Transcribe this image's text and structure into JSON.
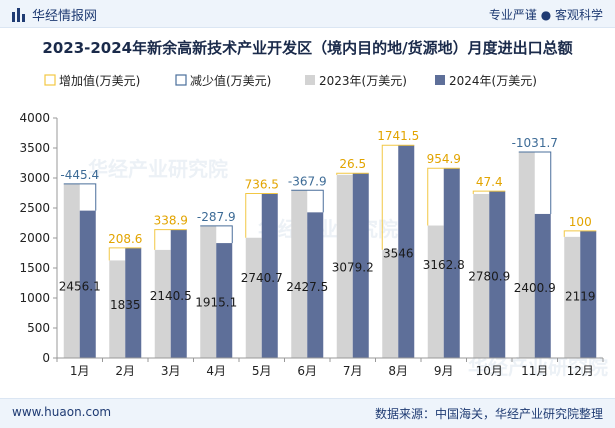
{
  "header": {
    "brand": "华经情报网",
    "tagline": "专业严谨 ● 客观科学"
  },
  "footer": {
    "website": "www.huaon.com",
    "source": "数据来源：中国海关，华经产业研究院整理"
  },
  "watermark": "华经产业研究院",
  "colors": {
    "bar2023": "#d3d3d3",
    "bar2024": "#5e6f99",
    "increase": "#f2c744",
    "decrease": "#4a6f9b",
    "increaseLabel": "#e2a400",
    "decreaseLabel": "#3d6b96"
  },
  "chart_data": {
    "type": "bar",
    "title": "2023-2024年新余高新技术产业开发区（境内目的地/货源地）月度进出口总额",
    "legend": [
      "增加值(万美元)",
      "减少值(万美元)",
      "2023年(万美元)",
      "2024年(万美元)"
    ],
    "legend_position": "top-left",
    "categories": [
      "1月",
      "2月",
      "3月",
      "4月",
      "5月",
      "6月",
      "7月",
      "8月",
      "9月",
      "10月",
      "11月",
      "12月"
    ],
    "series": [
      {
        "name": "2023年(万美元)",
        "values": [
          2901.5,
          1626.4,
          1801.6,
          2203.0,
          2004.2,
          2795.4,
          3052.7,
          1804.5,
          2207.9,
          2733.5,
          3432.6,
          2019
        ]
      },
      {
        "name": "2024年(万美元)",
        "values": [
          2456.1,
          1835,
          2140.5,
          1915.1,
          2740.7,
          2427.5,
          3079.2,
          3546,
          3162.8,
          2780.9,
          2400.9,
          2119
        ]
      }
    ],
    "change_labels": [
      "-445.4",
      "208.6",
      "338.9",
      "-287.9",
      "736.5",
      "-367.9",
      "26.5",
      "1741.5",
      "954.9",
      "47.4",
      "-1031.7",
      "100"
    ],
    "value_labels": [
      "2456.1",
      "1835",
      "2140.5",
      "1915.1",
      "2740.7",
      "2427.5",
      "3079.2",
      "3546",
      "3162.8",
      "2780.9",
      "2400.9",
      "2119"
    ],
    "y_ticks": [
      "0",
      "500",
      "1000",
      "1500",
      "2000",
      "2500",
      "3000",
      "3500",
      "4000"
    ],
    "ylim": [
      0,
      4000
    ],
    "xlabel": "",
    "ylabel": ""
  }
}
